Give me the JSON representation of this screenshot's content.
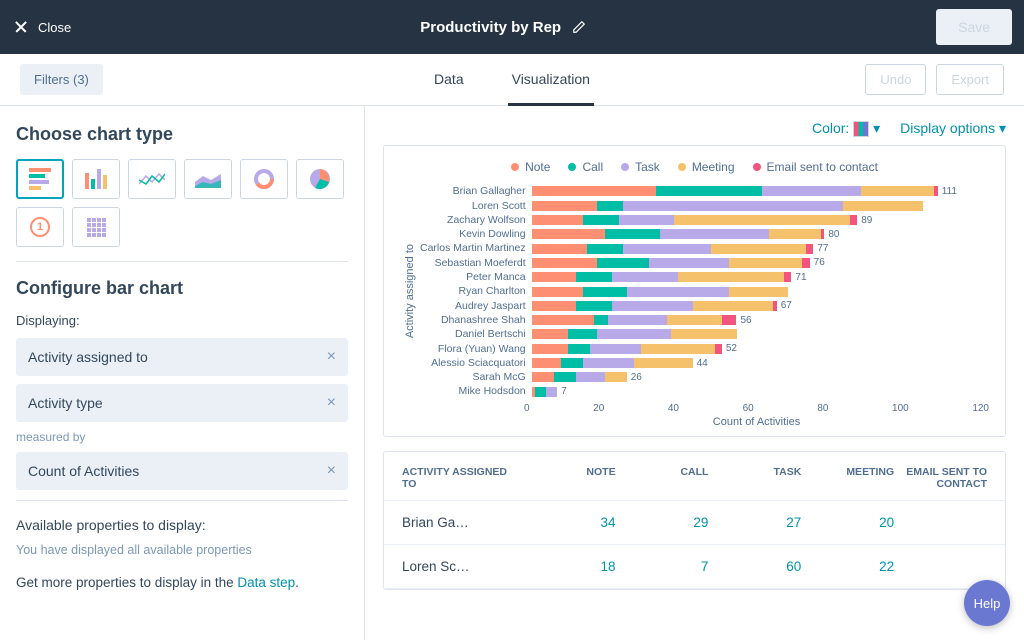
{
  "topbar": {
    "close": "Close",
    "title": "Productivity by Rep",
    "save": "Save"
  },
  "subbar": {
    "filters": "Filters (3)",
    "tabs": [
      "Data",
      "Visualization"
    ],
    "active_tab": 1,
    "undo": "Undo",
    "export": "Export"
  },
  "left": {
    "choose_title": "Choose chart type",
    "chart_types": [
      "hbar",
      "vbar",
      "line",
      "area",
      "donut",
      "pie",
      "num",
      "grid"
    ],
    "selected_type": 0,
    "configure_title": "Configure bar chart",
    "displaying_label": "Displaying:",
    "fields": [
      "Activity assigned to",
      "Activity type"
    ],
    "measured_label": "measured by",
    "measure": "Count of Activities",
    "avail_title": "Available properties to display:",
    "avail_text": "You have displayed all available properties",
    "more_text_pre": "Get more properties to display in the ",
    "more_link": "Data step",
    "more_text_post": "."
  },
  "right_head": {
    "color_label": "Color:",
    "display_options": "Display options"
  },
  "chart": {
    "type": "stacked-hbar",
    "legend": [
      {
        "label": "Note",
        "color": "#ff8f73"
      },
      {
        "label": "Call",
        "color": "#00bda5"
      },
      {
        "label": "Task",
        "color": "#b8a9e8"
      },
      {
        "label": "Meeting",
        "color": "#f5c26b"
      },
      {
        "label": "Email sent to contact",
        "color": "#f2547d"
      }
    ],
    "y_title": "Activity assigned to",
    "x_title": "Count of Activities",
    "xlim": [
      0,
      125
    ],
    "xticks": [
      0,
      20,
      40,
      60,
      80,
      100,
      120
    ],
    "rows": [
      {
        "name": "Brian Gallagher",
        "segs": [
          34,
          29,
          27,
          20,
          1
        ],
        "label": "111"
      },
      {
        "name": "Loren Scott",
        "segs": [
          18,
          7,
          60,
          22,
          0
        ],
        "label": ""
      },
      {
        "name": "Zachary Wolfson",
        "segs": [
          14,
          10,
          15,
          48,
          2
        ],
        "label": "89"
      },
      {
        "name": "Kevin Dowling",
        "segs": [
          20,
          15,
          30,
          14,
          1
        ],
        "label": "80"
      },
      {
        "name": "Carlos Martin Martinez",
        "segs": [
          15,
          10,
          24,
          26,
          2
        ],
        "label": "77"
      },
      {
        "name": "Sebastian Moeferdt",
        "segs": [
          18,
          14,
          22,
          20,
          2
        ],
        "label": "76"
      },
      {
        "name": "Peter Manca",
        "segs": [
          12,
          10,
          18,
          29,
          2
        ],
        "label": "71"
      },
      {
        "name": "Ryan Charlton",
        "segs": [
          14,
          12,
          28,
          16,
          0
        ],
        "label": ""
      },
      {
        "name": "Audrey Jaspart",
        "segs": [
          12,
          10,
          22,
          22,
          1
        ],
        "label": "67"
      },
      {
        "name": "Dhanashree Shah",
        "segs": [
          17,
          4,
          16,
          15,
          4
        ],
        "label": "56"
      },
      {
        "name": "Daniel Bertschi",
        "segs": [
          10,
          8,
          20,
          18,
          0
        ],
        "label": ""
      },
      {
        "name": "Flora (Yuan) Wang",
        "segs": [
          10,
          6,
          14,
          20,
          2
        ],
        "label": "52"
      },
      {
        "name": "Alessio Sciacquatori",
        "segs": [
          8,
          6,
          14,
          16,
          0
        ],
        "label": "44"
      },
      {
        "name": "Sarah McG",
        "segs": [
          6,
          6,
          8,
          6,
          0
        ],
        "label": "26"
      },
      {
        "name": "Mike Hodsdon",
        "segs": [
          1,
          3,
          3,
          0,
          0
        ],
        "label": "7"
      }
    ]
  },
  "table": {
    "cols": [
      "ACTIVITY ASSIGNED TO",
      "NOTE",
      "CALL",
      "TASK",
      "MEETING",
      "EMAIL SENT TO CONTACT"
    ],
    "rows": [
      [
        "Brian Ga…",
        "34",
        "29",
        "27",
        "20",
        ""
      ],
      [
        "Loren Sc…",
        "18",
        "7",
        "60",
        "22",
        ""
      ]
    ]
  },
  "help": "Help"
}
